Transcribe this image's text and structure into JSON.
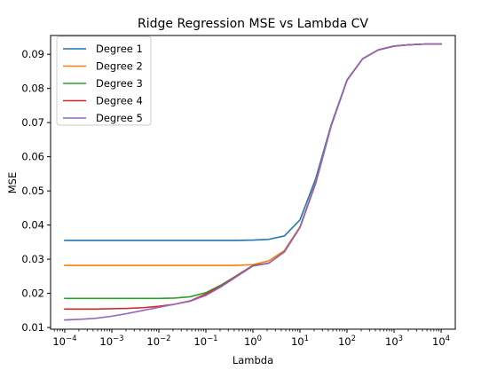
{
  "chart_data": {
    "type": "line",
    "title": "Ridge Regression MSE vs Lambda CV",
    "xlabel": "Lambda",
    "ylabel": "MSE",
    "xscale": "log",
    "xlim": [
      5e-05,
      20000
    ],
    "ylim": [
      0.0095,
      0.0955
    ],
    "grid": false,
    "legend_position": "top-left",
    "x_ticks": [
      {
        "value": 0.0001,
        "base": "10",
        "exp": "−4"
      },
      {
        "value": 0.001,
        "base": "10",
        "exp": "−3"
      },
      {
        "value": 0.01,
        "base": "10",
        "exp": "−2"
      },
      {
        "value": 0.1,
        "base": "10",
        "exp": "−1"
      },
      {
        "value": 1,
        "base": "10",
        "exp": "0"
      },
      {
        "value": 10,
        "base": "10",
        "exp": "1"
      },
      {
        "value": 100,
        "base": "10",
        "exp": "2"
      },
      {
        "value": 1000,
        "base": "10",
        "exp": "3"
      },
      {
        "value": 10000,
        "base": "10",
        "exp": "4"
      }
    ],
    "y_ticks": [
      {
        "value": 0.01,
        "label": "0.01"
      },
      {
        "value": 0.02,
        "label": "0.02"
      },
      {
        "value": 0.03,
        "label": "0.03"
      },
      {
        "value": 0.04,
        "label": "0.04"
      },
      {
        "value": 0.05,
        "label": "0.05"
      },
      {
        "value": 0.06,
        "label": "0.06"
      },
      {
        "value": 0.07,
        "label": "0.07"
      },
      {
        "value": 0.08,
        "label": "0.08"
      },
      {
        "value": 0.09,
        "label": "0.09"
      }
    ],
    "x": [
      0.0001,
      0.00022,
      0.00046,
      0.001,
      0.00215,
      0.00464,
      0.01,
      0.0215,
      0.0464,
      0.1,
      0.215,
      0.464,
      1,
      2.15,
      4.64,
      10,
      21.5,
      46.4,
      100,
      215,
      464,
      1000,
      2154,
      4642,
      10000
    ],
    "series": [
      {
        "name": "Degree 1",
        "color": "#1f77b4",
        "values": [
          0.0355,
          0.0355,
          0.0355,
          0.0355,
          0.0355,
          0.0355,
          0.0355,
          0.0355,
          0.0355,
          0.0355,
          0.0355,
          0.0355,
          0.0356,
          0.0358,
          0.0368,
          0.0415,
          0.0535,
          0.0695,
          0.0825,
          0.0887,
          0.0913,
          0.0924,
          0.0928,
          0.093,
          0.093
        ]
      },
      {
        "name": "Degree 2",
        "color": "#ff7f0e",
        "values": [
          0.0282,
          0.0282,
          0.0282,
          0.0282,
          0.0282,
          0.0282,
          0.0282,
          0.0282,
          0.0282,
          0.0282,
          0.0282,
          0.0282,
          0.0284,
          0.0295,
          0.0325,
          0.0395,
          0.0525,
          0.0692,
          0.0824,
          0.0887,
          0.0913,
          0.0924,
          0.0928,
          0.093,
          0.093
        ]
      },
      {
        "name": "Degree 3",
        "color": "#2ca02c",
        "values": [
          0.0185,
          0.0185,
          0.0185,
          0.0185,
          0.0185,
          0.0185,
          0.0185,
          0.0186,
          0.019,
          0.0202,
          0.0225,
          0.0253,
          0.0282,
          0.0288,
          0.0322,
          0.0393,
          0.0522,
          0.0692,
          0.0824,
          0.0887,
          0.0913,
          0.0924,
          0.0928,
          0.093,
          0.093
        ]
      },
      {
        "name": "Degree 4",
        "color": "#d62728",
        "values": [
          0.0154,
          0.0154,
          0.0154,
          0.0155,
          0.0156,
          0.0158,
          0.0162,
          0.0168,
          0.0178,
          0.0198,
          0.0222,
          0.0252,
          0.0281,
          0.0288,
          0.0321,
          0.0393,
          0.0522,
          0.0692,
          0.0824,
          0.0887,
          0.0913,
          0.0924,
          0.0928,
          0.093,
          0.093
        ]
      },
      {
        "name": "Degree 5",
        "color": "#9467bd",
        "values": [
          0.0122,
          0.0124,
          0.0127,
          0.0133,
          0.0141,
          0.015,
          0.0159,
          0.0168,
          0.0177,
          0.0194,
          0.022,
          0.025,
          0.028,
          0.0288,
          0.0321,
          0.0393,
          0.0522,
          0.0692,
          0.0824,
          0.0887,
          0.0913,
          0.0924,
          0.0928,
          0.093,
          0.093
        ]
      }
    ]
  }
}
